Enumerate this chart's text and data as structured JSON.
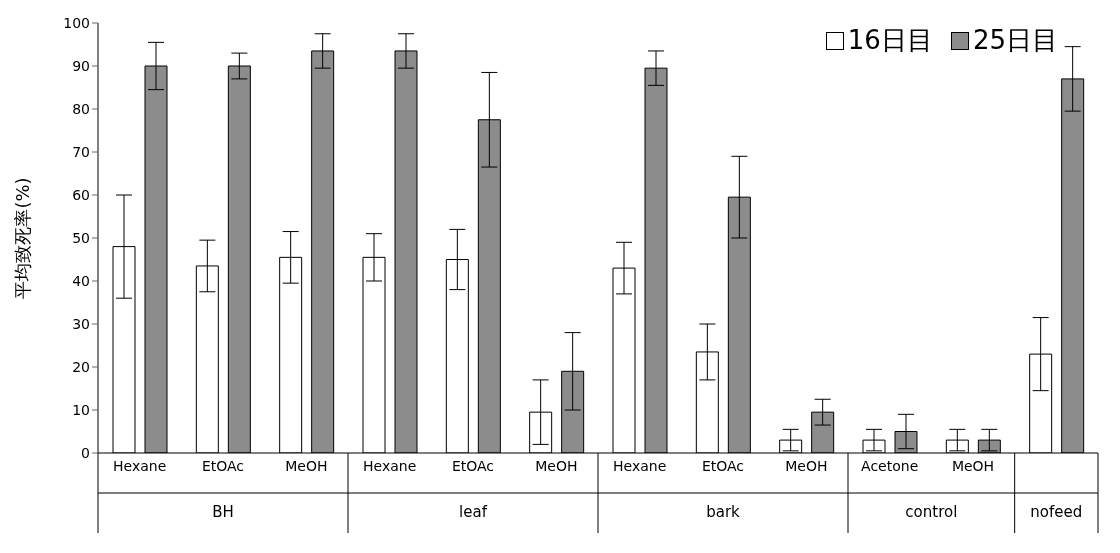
{
  "chart_data": {
    "type": "bar",
    "ylabel": "平均致死率(%)",
    "categories": [
      "Hexane",
      "EtOAc",
      "MeOH",
      "Hexane",
      "EtOAc",
      "MeOH",
      "Hexane",
      "EtOAc",
      "MeOH",
      "Acetone",
      "MeOH",
      null
    ],
    "series": [
      {
        "name": "16日目",
        "color": "#ffffff",
        "values": [
          48,
          43.5,
          45.5,
          45.5,
          45,
          9.5,
          43,
          23.5,
          3,
          3,
          3,
          23
        ],
        "errors": [
          12,
          6,
          6,
          5.5,
          7,
          7.5,
          6,
          6.5,
          2.5,
          2.5,
          2.5,
          8.5
        ]
      },
      {
        "name": "25日目",
        "color": "#8c8c8c",
        "values": [
          90,
          90,
          93.5,
          93.5,
          77.5,
          19,
          89.5,
          59.5,
          9.5,
          5,
          3,
          87
        ],
        "errors": [
          5.5,
          3,
          4,
          4,
          11,
          9,
          4,
          9.5,
          3,
          4,
          2.5,
          7.5
        ]
      }
    ],
    "ylim": [
      0,
      100
    ],
    "yticks": [
      0,
      10,
      20,
      30,
      40,
      50,
      60,
      70,
      80,
      90,
      100
    ],
    "annotations": [
      "BH",
      "leaf",
      "bark",
      "control",
      "nofeed"
    ],
    "legend": "top right"
  }
}
